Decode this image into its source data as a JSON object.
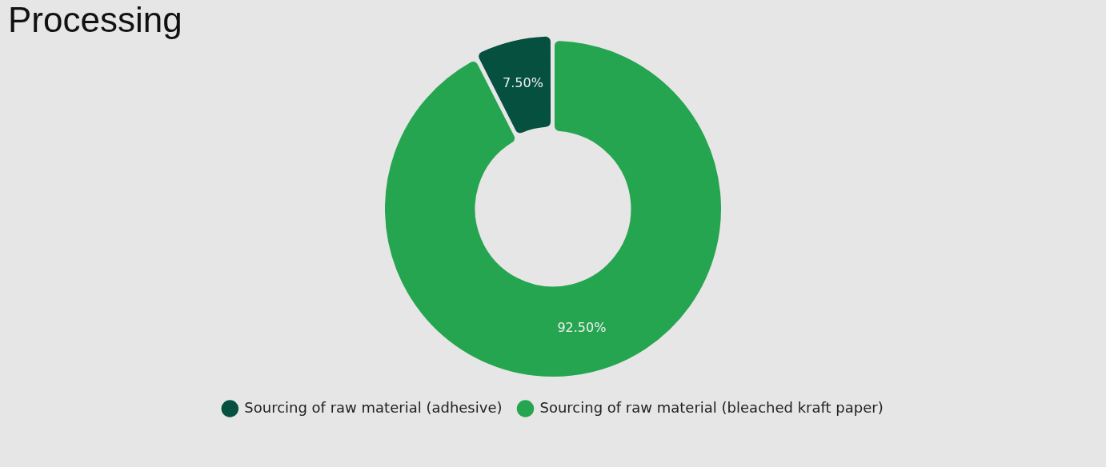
{
  "chart_data": {
    "type": "donut",
    "title": "Processing",
    "categories": [
      "Sourcing of raw material (adhesive)",
      "Sourcing of raw material (bleached kraft paper)"
    ],
    "values": [
      7.5,
      92.5
    ],
    "colors": [
      "#065040",
      "#26a550"
    ],
    "value_labels": [
      "7.50%",
      "92.50%"
    ],
    "legend": "bottom"
  }
}
